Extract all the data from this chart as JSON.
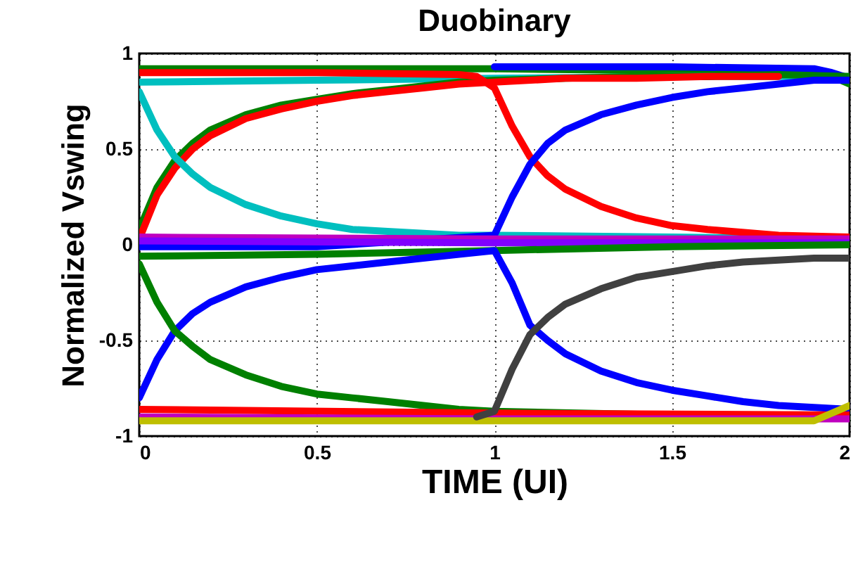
{
  "chart_data": {
    "type": "line",
    "title": "Duobinary",
    "xlabel": "TIME (UI)",
    "ylabel": "Normalized Vswing",
    "xlim": [
      0,
      2
    ],
    "ylim": [
      -1,
      1
    ],
    "xticks": [
      0,
      0.5,
      1,
      1.5,
      2
    ],
    "yticks": [
      -1,
      -0.5,
      0,
      0.5,
      1
    ],
    "grid": true,
    "series": [
      {
        "color": "#008000",
        "x": [
          0,
          0.5,
          1,
          1.5,
          1.9,
          1.95,
          2
        ],
        "values": [
          0.92,
          0.92,
          0.92,
          0.91,
          0.9,
          0.88,
          0.84
        ]
      },
      {
        "color": "#00bfbf",
        "x": [
          0,
          0.5,
          1,
          1.5,
          2
        ],
        "values": [
          0.85,
          0.86,
          0.87,
          0.88,
          0.88
        ]
      },
      {
        "color": "#0000ff",
        "x": [
          1,
          1.5,
          1.9,
          1.95,
          2
        ],
        "values": [
          0.93,
          0.93,
          0.92,
          0.9,
          0.87
        ]
      },
      {
        "color": "#008000",
        "x": [
          0,
          0.05,
          0.1,
          0.15,
          0.2,
          0.3,
          0.4,
          0.5,
          0.6,
          0.7,
          0.8,
          0.9,
          1,
          1.2,
          1.4,
          1.6,
          1.8,
          2
        ],
        "values": [
          0.08,
          0.3,
          0.44,
          0.53,
          0.6,
          0.68,
          0.73,
          0.76,
          0.79,
          0.81,
          0.83,
          0.85,
          0.86,
          0.87,
          0.88,
          0.88,
          0.89,
          0.88
        ]
      },
      {
        "color": "#ff0000",
        "x": [
          0,
          0.05,
          0.1,
          0.15,
          0.2,
          0.3,
          0.4,
          0.5,
          0.6,
          0.7,
          0.8,
          0.9,
          1,
          1.2,
          1.4,
          1.6,
          1.8
        ],
        "values": [
          0.03,
          0.26,
          0.4,
          0.5,
          0.57,
          0.66,
          0.71,
          0.75,
          0.78,
          0.8,
          0.82,
          0.84,
          0.85,
          0.87,
          0.87,
          0.88,
          0.88
        ]
      },
      {
        "color": "#00bfbf",
        "x": [
          0,
          0.05,
          0.1,
          0.15,
          0.2,
          0.3,
          0.4,
          0.5,
          0.6,
          0.7,
          0.8,
          0.9,
          1,
          1.5,
          2
        ],
        "values": [
          0.8,
          0.6,
          0.46,
          0.37,
          0.3,
          0.21,
          0.15,
          0.11,
          0.08,
          0.07,
          0.06,
          0.05,
          0.05,
          0.04,
          0.03
        ]
      },
      {
        "color": "#ff0000",
        "x": [
          0,
          0.5,
          0.9,
          0.95,
          1,
          1.05,
          1.1,
          1.15,
          1.2,
          1.3,
          1.4,
          1.5,
          1.6,
          1.8,
          2
        ],
        "values": [
          0.9,
          0.9,
          0.89,
          0.88,
          0.82,
          0.62,
          0.46,
          0.36,
          0.29,
          0.2,
          0.14,
          0.1,
          0.08,
          0.05,
          0.04
        ]
      },
      {
        "color": "#0000ff",
        "x": [
          0,
          0.5,
          1,
          1.05,
          1.1,
          1.15,
          1.2,
          1.3,
          1.4,
          1.5,
          1.6,
          1.7,
          1.8,
          1.9,
          2
        ],
        "values": [
          -0.01,
          -0.01,
          0.05,
          0.25,
          0.42,
          0.53,
          0.6,
          0.68,
          0.73,
          0.77,
          0.8,
          0.82,
          0.84,
          0.86,
          0.86
        ]
      },
      {
        "color": "#bf00bf",
        "x": [
          0,
          1,
          2
        ],
        "values": [
          0.04,
          0.03,
          0.03
        ]
      },
      {
        "color": "#8000ff",
        "x": [
          0,
          1,
          2
        ],
        "values": [
          0.02,
          0.01,
          0.01
        ]
      },
      {
        "color": "#008000",
        "x": [
          0,
          0.5,
          1,
          1.5,
          2
        ],
        "values": [
          -0.06,
          -0.05,
          -0.03,
          -0.01,
          0
        ]
      },
      {
        "color": "#0000ff",
        "x": [
          0,
          0.05,
          0.1,
          0.15,
          0.2,
          0.3,
          0.4,
          0.5,
          0.6,
          0.7,
          0.8,
          0.9,
          1,
          1.05,
          1.1,
          1.15,
          1.2,
          1.3,
          1.4,
          1.5,
          1.6,
          1.7,
          1.8,
          1.9,
          2
        ],
        "values": [
          -0.8,
          -0.6,
          -0.45,
          -0.36,
          -0.3,
          -0.22,
          -0.17,
          -0.13,
          -0.11,
          -0.09,
          -0.07,
          -0.05,
          -0.03,
          -0.2,
          -0.42,
          -0.5,
          -0.57,
          -0.66,
          -0.72,
          -0.76,
          -0.79,
          -0.82,
          -0.84,
          -0.85,
          -0.86
        ]
      },
      {
        "color": "#008000",
        "x": [
          0,
          0.05,
          0.1,
          0.15,
          0.2,
          0.3,
          0.4,
          0.5,
          0.6,
          0.7,
          0.8,
          0.9,
          1,
          1.5,
          2
        ],
        "values": [
          -0.1,
          -0.3,
          -0.45,
          -0.53,
          -0.6,
          -0.68,
          -0.74,
          -0.78,
          -0.8,
          -0.82,
          -0.84,
          -0.86,
          -0.87,
          -0.89,
          -0.9
        ]
      },
      {
        "color": "#ff0000",
        "x": [
          0,
          1,
          2
        ],
        "values": [
          -0.86,
          -0.88,
          -0.89
        ]
      },
      {
        "color": "#bf00bf",
        "x": [
          0,
          1,
          2
        ],
        "values": [
          -0.9,
          -0.91,
          -0.91
        ]
      },
      {
        "color": "#bfbf00",
        "x": [
          0,
          1,
          1.9,
          2
        ],
        "values": [
          -0.92,
          -0.92,
          -0.92,
          -0.84
        ]
      },
      {
        "color": "#404040",
        "x": [
          0.95,
          1,
          1.05,
          1.1,
          1.15,
          1.2,
          1.3,
          1.4,
          1.5,
          1.6,
          1.7,
          1.8,
          1.9,
          2
        ],
        "values": [
          -0.9,
          -0.87,
          -0.65,
          -0.47,
          -0.38,
          -0.31,
          -0.23,
          -0.17,
          -0.14,
          -0.11,
          -0.09,
          -0.08,
          -0.07,
          -0.07
        ]
      }
    ]
  }
}
